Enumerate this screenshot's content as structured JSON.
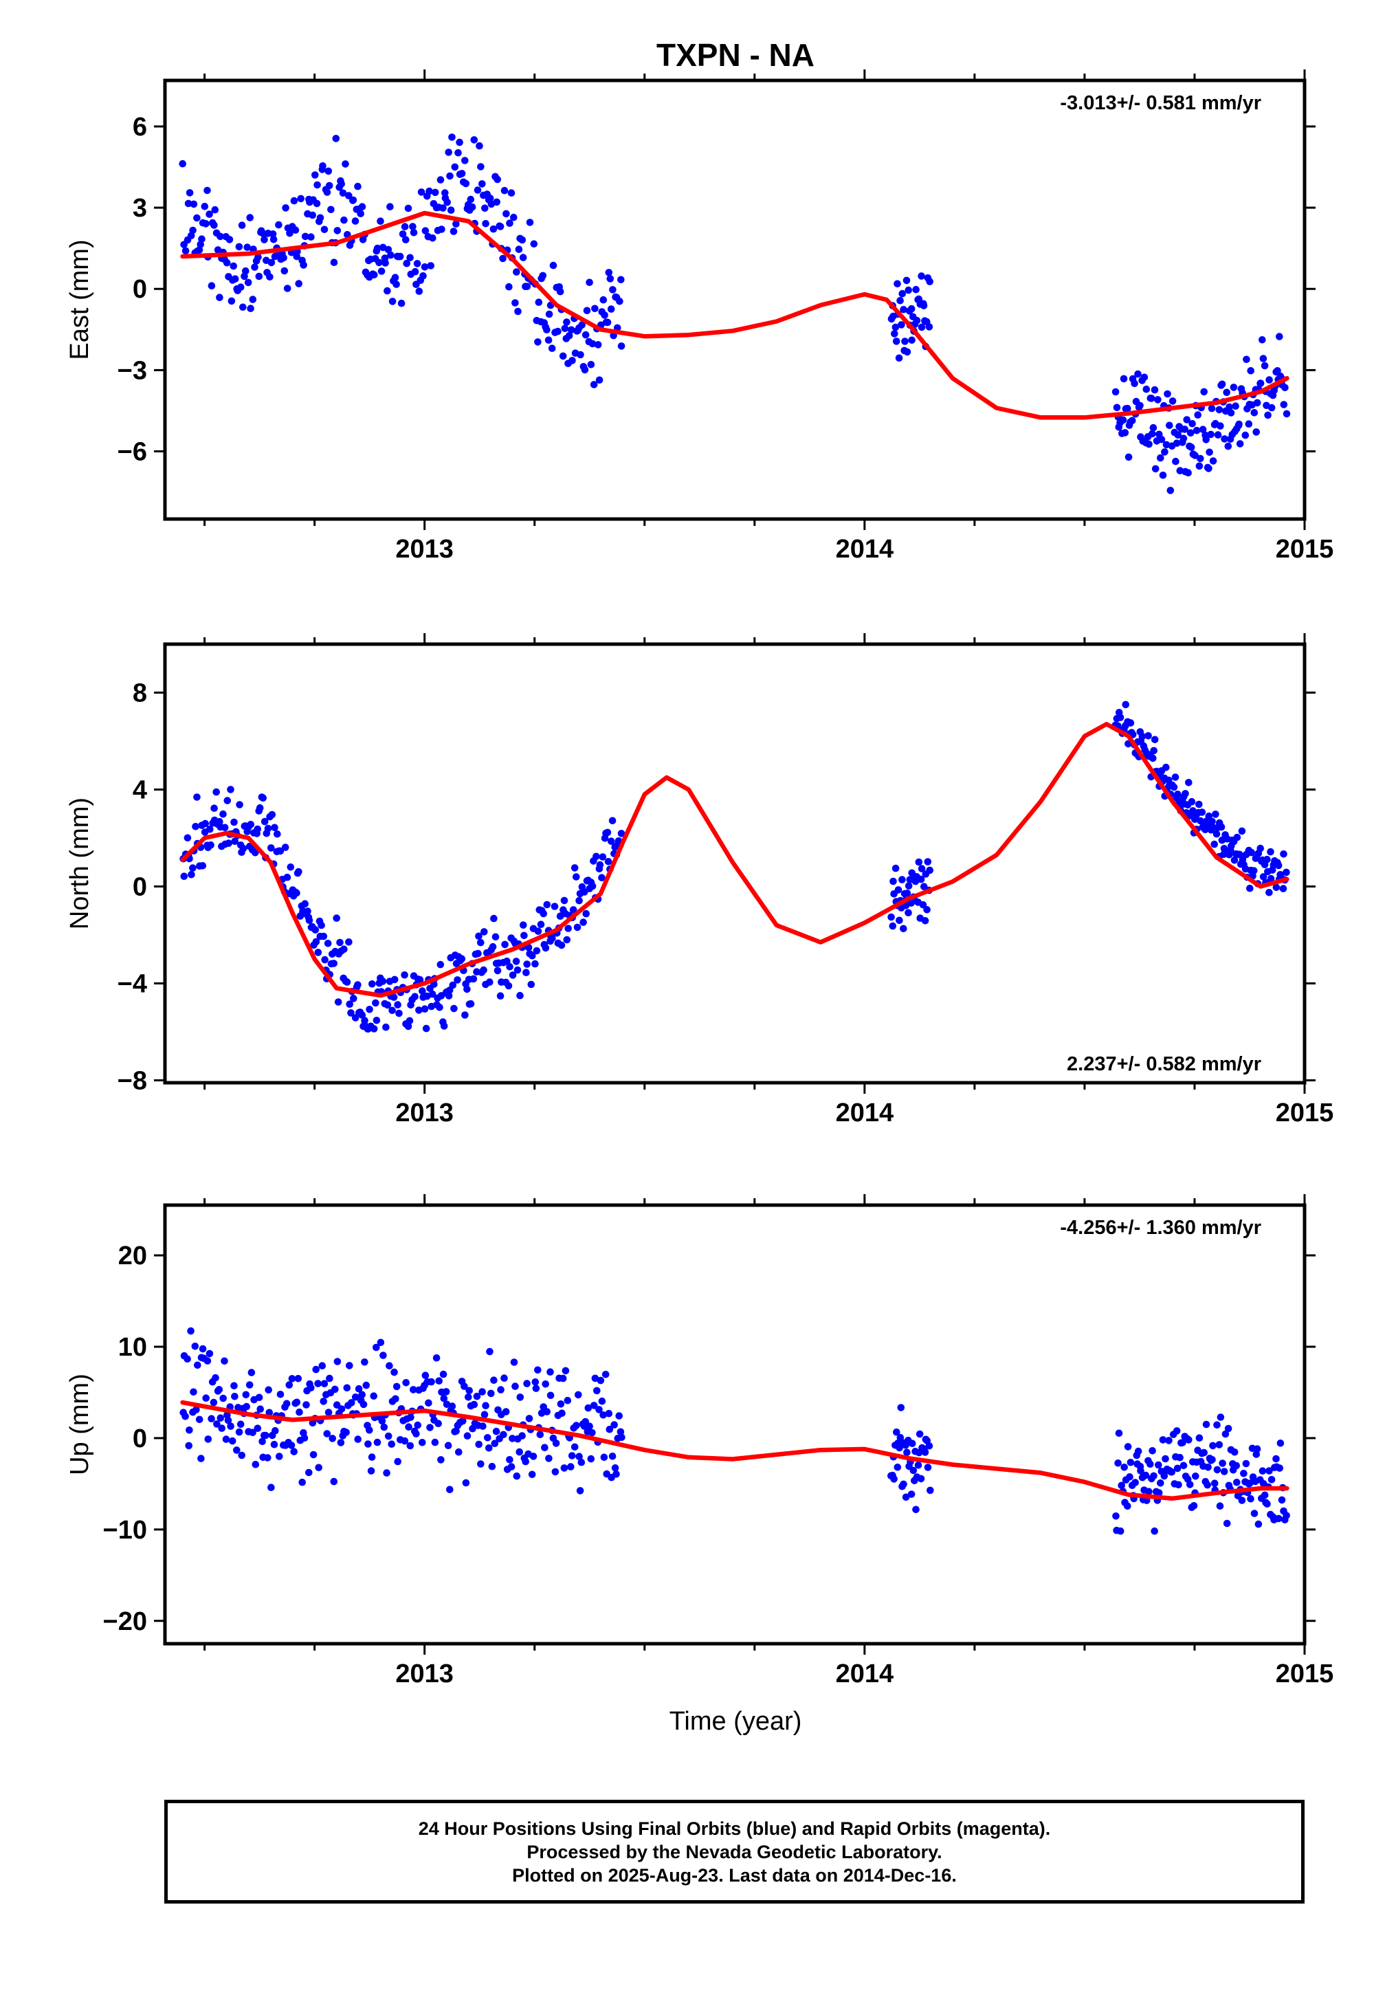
{
  "figure": {
    "title": "TXPN - NA",
    "xlabel": "Time (year)"
  },
  "footer": {
    "line1": "24 Hour Positions Using Final Orbits (blue) and Rapid Orbits (magenta).",
    "line2": "Processed by the Nevada Geodetic Laboratory.",
    "line3": "Plotted on 2025-Aug-23. Last data on 2014-Dec-16."
  },
  "colors": {
    "points": "#0000ff",
    "fit": "#ff0000",
    "axes": "#000000"
  },
  "chart_data": [
    {
      "type": "scatter",
      "ylabel": "East (mm)",
      "rate_label": "-3.013+/- 0.581 mm/yr",
      "rate_position": "top-right",
      "xlim": [
        2012.41,
        2015.0
      ],
      "ylim": [
        -8.5,
        7.7
      ],
      "xticks": [
        2013,
        2014,
        2015
      ],
      "xtick_labels": [
        "2013",
        "2014",
        "2015"
      ],
      "yticks": [
        -6,
        -3,
        0,
        3,
        6
      ],
      "ytick_labels": [
        "−6",
        "−3",
        "0",
        "3",
        "6"
      ],
      "grid": false,
      "observation_segments": [
        {
          "range": [
            2012.45,
            2013.45
          ],
          "trend": [
            [
              2012.45,
              2.5
            ],
            [
              2012.6,
              0.6
            ],
            [
              2012.8,
              3.5
            ],
            [
              2012.95,
              1.0
            ],
            [
              2013.05,
              3.6
            ],
            [
              2013.15,
              3.2
            ],
            [
              2013.25,
              0.0
            ],
            [
              2013.35,
              -2.2
            ],
            [
              2013.45,
              -0.6
            ]
          ],
          "scatter": 1.4,
          "count": 330
        },
        {
          "range": [
            2014.06,
            2014.15
          ],
          "trend": [
            [
              2014.06,
              -1.0
            ],
            [
              2014.15,
              -0.8
            ]
          ],
          "scatter": 1.0,
          "count": 40
        },
        {
          "range": [
            2014.57,
            2014.96
          ],
          "trend": [
            [
              2014.57,
              -4.5
            ],
            [
              2014.75,
              -5.8
            ],
            [
              2014.96,
              -3.2
            ]
          ],
          "scatter": 1.2,
          "count": 150
        }
      ],
      "fit": {
        "x": [
          2012.45,
          2012.6,
          2012.8,
          2013.0,
          2013.1,
          2013.2,
          2013.3,
          2013.4,
          2013.5,
          2013.6,
          2013.7,
          2013.8,
          2013.9,
          2014.0,
          2014.05,
          2014.1,
          2014.2,
          2014.3,
          2014.4,
          2014.5,
          2014.6,
          2014.7,
          2014.8,
          2014.9,
          2014.96
        ],
        "y": [
          1.2,
          1.3,
          1.7,
          2.8,
          2.5,
          1.1,
          -0.6,
          -1.5,
          -1.75,
          -1.7,
          -1.55,
          -1.2,
          -0.6,
          -0.2,
          -0.4,
          -1.3,
          -3.3,
          -4.4,
          -4.75,
          -4.75,
          -4.6,
          -4.4,
          -4.2,
          -3.8,
          -3.3
        ]
      }
    },
    {
      "type": "scatter",
      "ylabel": "North (mm)",
      "rate_label": "2.237+/- 0.582 mm/yr",
      "rate_position": "bottom-right",
      "xlim": [
        2012.41,
        2015.0
      ],
      "ylim": [
        -8.1,
        10.0
      ],
      "xticks": [
        2013,
        2014,
        2015
      ],
      "xtick_labels": [
        "2013",
        "2014",
        "2015"
      ],
      "yticks": [
        -8,
        -4,
        0,
        4,
        8
      ],
      "ytick_labels": [
        "−8",
        "−4",
        "0",
        "4",
        "8"
      ],
      "grid": false,
      "observation_segments": [
        {
          "range": [
            2012.45,
            2013.45
          ],
          "trend": [
            [
              2012.45,
              1.3
            ],
            [
              2012.55,
              2.5
            ],
            [
              2012.65,
              2.2
            ],
            [
              2012.75,
              -2.0
            ],
            [
              2012.85,
              -4.7
            ],
            [
              2012.95,
              -4.8
            ],
            [
              2013.1,
              -3.6
            ],
            [
              2013.25,
              -2.3
            ],
            [
              2013.35,
              -0.8
            ],
            [
              2013.45,
              2.5
            ]
          ],
          "scatter": 1.0,
          "count": 330
        },
        {
          "range": [
            2014.06,
            2014.15
          ],
          "trend": [
            [
              2014.06,
              -1.0
            ],
            [
              2014.15,
              0.2
            ]
          ],
          "scatter": 1.0,
          "count": 40
        },
        {
          "range": [
            2014.57,
            2014.96
          ],
          "trend": [
            [
              2014.57,
              7.0
            ],
            [
              2014.65,
              5.3
            ],
            [
              2014.75,
              3.0
            ],
            [
              2014.85,
              1.2
            ],
            [
              2014.96,
              0.3
            ]
          ],
          "scatter": 0.7,
          "count": 150
        }
      ],
      "fit": {
        "x": [
          2012.45,
          2012.5,
          2012.55,
          2012.6,
          2012.65,
          2012.7,
          2012.75,
          2012.8,
          2012.9,
          2013.0,
          2013.1,
          2013.2,
          2013.3,
          2013.4,
          2013.45,
          2013.5,
          2013.55,
          2013.6,
          2013.7,
          2013.8,
          2013.9,
          2014.0,
          2014.1,
          2014.2,
          2014.3,
          2014.4,
          2014.5,
          2014.55,
          2014.6,
          2014.7,
          2014.8,
          2014.9,
          2014.96
        ],
        "y": [
          1.1,
          2.0,
          2.2,
          2.0,
          1.0,
          -1.1,
          -3.0,
          -4.2,
          -4.5,
          -4.0,
          -3.2,
          -2.6,
          -1.8,
          -0.3,
          1.8,
          3.8,
          4.5,
          4.0,
          1.0,
          -1.6,
          -2.3,
          -1.5,
          -0.5,
          0.2,
          1.3,
          3.5,
          6.2,
          6.7,
          6.2,
          3.5,
          1.2,
          0.0,
          0.3
        ]
      }
    },
    {
      "type": "scatter",
      "ylabel": "Up (mm)",
      "rate_label": "-4.256+/- 1.360 mm/yr",
      "rate_position": "top-right",
      "xlim": [
        2012.41,
        2015.0
      ],
      "ylim": [
        -22.5,
        25.5
      ],
      "xticks": [
        2013,
        2014,
        2015
      ],
      "xtick_labels": [
        "2013",
        "2014",
        "2015"
      ],
      "yticks": [
        -20,
        -10,
        0,
        10,
        20
      ],
      "ytick_labels": [
        "−20",
        "−10",
        "0",
        "10",
        "20"
      ],
      "grid": false,
      "observation_segments": [
        {
          "range": [
            2012.45,
            2013.45
          ],
          "trend": [
            [
              2012.45,
              4.0
            ],
            [
              2012.7,
              2.2
            ],
            [
              2012.95,
              3.0
            ],
            [
              2013.2,
              1.5
            ],
            [
              2013.45,
              0.5
            ]
          ],
          "scatter": 4.5,
          "count": 330
        },
        {
          "range": [
            2014.06,
            2014.15
          ],
          "trend": [
            [
              2014.06,
              -3.0
            ],
            [
              2014.15,
              -2.0
            ]
          ],
          "scatter": 3.5,
          "count": 40
        },
        {
          "range": [
            2014.57,
            2014.96
          ],
          "trend": [
            [
              2014.57,
              -5.5
            ],
            [
              2014.75,
              -3.0
            ],
            [
              2014.96,
              -6.0
            ]
          ],
          "scatter": 3.5,
          "count": 150
        }
      ],
      "fit": {
        "x": [
          2012.45,
          2012.6,
          2012.7,
          2012.85,
          2013.0,
          2013.1,
          2013.2,
          2013.35,
          2013.5,
          2013.6,
          2013.7,
          2013.8,
          2013.9,
          2014.0,
          2014.1,
          2014.2,
          2014.4,
          2014.5,
          2014.6,
          2014.7,
          2014.8,
          2014.9,
          2014.96
        ],
        "y": [
          3.9,
          2.6,
          2.0,
          2.5,
          3.0,
          2.3,
          1.5,
          0.3,
          -1.3,
          -2.1,
          -2.3,
          -1.8,
          -1.3,
          -1.2,
          -2.2,
          -2.9,
          -3.8,
          -4.8,
          -6.2,
          -6.6,
          -6.0,
          -5.5,
          -5.5
        ]
      }
    }
  ]
}
